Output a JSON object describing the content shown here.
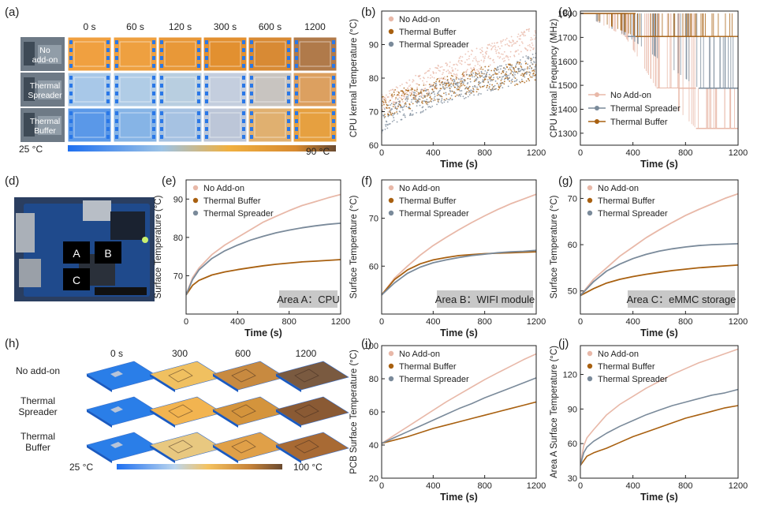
{
  "panel_letters": [
    "(a)",
    "(b)",
    "(c)",
    "(d)",
    "(e)",
    "(f)",
    "(g)",
    "(h)",
    "(i)",
    "(j)"
  ],
  "a": {
    "time_labels": [
      "0 s",
      "60 s",
      "120 s",
      "300 s",
      "600 s",
      "1200"
    ],
    "row_labels": [
      [
        "No",
        "add-on"
      ],
      [
        "Thermal",
        "Spreader"
      ],
      [
        "Thermal",
        "Buffer"
      ]
    ],
    "scale_min": "25 °C",
    "scale_max": "90 °C"
  },
  "d": {
    "areas": [
      "A",
      "B",
      "C"
    ]
  },
  "h": {
    "time_labels": [
      "0 s",
      "300",
      "600",
      "1200"
    ],
    "row_labels": [
      [
        "No add-on"
      ],
      [
        "Thermal",
        "Spreader"
      ],
      [
        "Thermal",
        "Buffer"
      ]
    ],
    "scale_min": "25 °C",
    "scale_max": "100 °C"
  },
  "colors": {
    "no_addon": "#e8b8a8",
    "buffer": "#a86010",
    "spreader": "#7a8a9a"
  },
  "chart_data": [
    {
      "id": "b",
      "type": "scatter",
      "xlabel": "Time (s)",
      "ylabel": "CPU kernal Temperature (°C)",
      "xlim": [
        0,
        1200
      ],
      "ylim": [
        60,
        100
      ],
      "xticks": [
        0,
        400,
        800,
        1200
      ],
      "yticks": [
        60,
        70,
        80,
        90
      ],
      "legend": "top-left",
      "series": [
        {
          "name": "No Add-on",
          "x": [
            0,
            100,
            200,
            300,
            400,
            500,
            600,
            700,
            800,
            900,
            1000,
            1100,
            1200
          ],
          "y": [
            72,
            74,
            76,
            78,
            80,
            81,
            83,
            85,
            86,
            88,
            89,
            91,
            92
          ]
        },
        {
          "name": "Thermal Buffer",
          "x": [
            0,
            100,
            200,
            300,
            400,
            500,
            600,
            700,
            800,
            900,
            1000,
            1100,
            1200
          ],
          "y": [
            71,
            73,
            74,
            75,
            76,
            77,
            78,
            79,
            80,
            80,
            81,
            82,
            83
          ]
        },
        {
          "name": "Thermal Spreader",
          "x": [
            0,
            100,
            200,
            300,
            400,
            500,
            600,
            700,
            800,
            900,
            1000,
            1100,
            1200
          ],
          "y": [
            67,
            70,
            72,
            73,
            75,
            76,
            77,
            78,
            79,
            80,
            81,
            83,
            84
          ]
        }
      ]
    },
    {
      "id": "c",
      "type": "line",
      "xlabel": "Time (s)",
      "ylabel": "CPU kernal Frequency (MHz)",
      "xlim": [
        0,
        1200
      ],
      "ylim": [
        1250,
        1810
      ],
      "xticks": [
        0,
        400,
        800,
        1200
      ],
      "yticks": [
        1300,
        1400,
        1500,
        1600,
        1700,
        1800
      ],
      "legend": "bottom-left",
      "series": [
        {
          "name": "No Add-on",
          "levels": [
            1800,
            1704,
            1488,
            1320
          ],
          "x": [
            0,
            340,
            580,
            880,
            1200
          ],
          "y": [
            1800,
            1704,
            1488,
            1320,
            1320
          ]
        },
        {
          "name": "Thermal Spreader",
          "levels": [
            1800,
            1704,
            1488
          ],
          "x": [
            0,
            360,
            900,
            1200
          ],
          "y": [
            1800,
            1704,
            1488,
            1488
          ]
        },
        {
          "name": "Thermal Buffer",
          "levels": [
            1800,
            1704
          ],
          "x": [
            0,
            420,
            1200
          ],
          "y": [
            1800,
            1704,
            1704
          ]
        }
      ]
    },
    {
      "id": "e",
      "type": "line",
      "xlabel": "Time (s)",
      "ylabel": "Surface Temperature (°C)",
      "xlim": [
        0,
        1200
      ],
      "ylim": [
        60,
        95
      ],
      "xticks": [
        0,
        400,
        800,
        1200
      ],
      "yticks": [
        70,
        80,
        90
      ],
      "legend": "top-left",
      "annotation": "Area A：CPU",
      "series": [
        {
          "name": "No Add-on",
          "x": [
            0,
            50,
            100,
            200,
            300,
            400,
            500,
            600,
            700,
            800,
            900,
            1000,
            1100,
            1200
          ],
          "y": [
            65,
            69.5,
            72,
            75.5,
            78,
            80,
            82,
            84,
            85.5,
            87,
            88.3,
            89.3,
            90.3,
            91.2
          ]
        },
        {
          "name": "Thermal Buffer",
          "x": [
            0,
            50,
            100,
            200,
            300,
            400,
            500,
            600,
            700,
            800,
            900,
            1000,
            1100,
            1200
          ],
          "y": [
            65,
            67.5,
            68.8,
            70.2,
            71,
            71.6,
            72.1,
            72.6,
            73,
            73.3,
            73.6,
            73.8,
            74,
            74.2
          ]
        },
        {
          "name": "Thermal Spreader",
          "x": [
            0,
            50,
            100,
            200,
            300,
            400,
            500,
            600,
            700,
            800,
            900,
            1000,
            1100,
            1200
          ],
          "y": [
            65,
            69,
            71.5,
            74.5,
            76.5,
            78,
            79.3,
            80.3,
            81.2,
            81.9,
            82.5,
            83,
            83.4,
            83.7
          ]
        }
      ]
    },
    {
      "id": "f",
      "type": "line",
      "xlabel": "Time (s)",
      "ylabel": "Surface Temperature (°C)",
      "xlim": [
        0,
        1200
      ],
      "ylim": [
        50,
        78
      ],
      "xticks": [
        0,
        400,
        800,
        1200
      ],
      "yticks": [
        60,
        70
      ],
      "legend": "top-left",
      "annotation": "Area B：WIFI module",
      "series": [
        {
          "name": "No Add-on",
          "x": [
            0,
            100,
            200,
            300,
            400,
            500,
            600,
            700,
            800,
            900,
            1000,
            1100,
            1200
          ],
          "y": [
            54,
            57.5,
            60,
            62.3,
            64.3,
            66,
            67.6,
            69.1,
            70.5,
            71.8,
            73,
            74,
            75
          ]
        },
        {
          "name": "Thermal Buffer",
          "x": [
            0,
            100,
            200,
            300,
            400,
            500,
            600,
            700,
            800,
            900,
            1000,
            1100,
            1200
          ],
          "y": [
            54,
            57.2,
            59.2,
            60.5,
            61.3,
            61.8,
            62.2,
            62.4,
            62.6,
            62.7,
            62.8,
            62.9,
            63
          ]
        },
        {
          "name": "Thermal Spreader",
          "x": [
            0,
            100,
            200,
            300,
            400,
            500,
            600,
            700,
            800,
            900,
            1000,
            1100,
            1200
          ],
          "y": [
            54,
            56.5,
            58.5,
            59.8,
            60.7,
            61.3,
            61.8,
            62.2,
            62.5,
            62.8,
            63,
            63.1,
            63.3
          ]
        }
      ]
    },
    {
      "id": "g",
      "type": "line",
      "xlabel": "Time (s)",
      "ylabel": "Surface Temperature (°C)",
      "xlim": [
        0,
        1200
      ],
      "ylim": [
        45,
        74
      ],
      "xticks": [
        0,
        400,
        800,
        1200
      ],
      "yticks": [
        50,
        60,
        70
      ],
      "legend": "top-left",
      "annotation": "Area C：eMMC storage",
      "series": [
        {
          "name": "No Add-on",
          "x": [
            0,
            100,
            200,
            300,
            400,
            500,
            600,
            700,
            800,
            900,
            1000,
            1100,
            1200
          ],
          "y": [
            49,
            52.5,
            55,
            57.5,
            59.5,
            61.5,
            63.2,
            64.8,
            66.3,
            67.6,
            68.8,
            70,
            71
          ]
        },
        {
          "name": "Thermal Buffer",
          "x": [
            0,
            100,
            200,
            300,
            400,
            500,
            600,
            700,
            800,
            900,
            1000,
            1100,
            1200
          ],
          "y": [
            49,
            50.5,
            51.7,
            52.5,
            53.1,
            53.6,
            54,
            54.4,
            54.7,
            55,
            55.2,
            55.4,
            55.6
          ]
        },
        {
          "name": "Thermal Spreader",
          "x": [
            0,
            100,
            200,
            300,
            400,
            500,
            600,
            700,
            800,
            900,
            1000,
            1100,
            1200
          ],
          "y": [
            49,
            52,
            54.3,
            55.8,
            57,
            57.9,
            58.6,
            59.1,
            59.5,
            59.8,
            60,
            60.1,
            60.2
          ]
        }
      ]
    },
    {
      "id": "i",
      "type": "line",
      "xlabel": "Time (s)",
      "ylabel": "PCB Surface Temperature (°C)",
      "xlim": [
        0,
        1200
      ],
      "ylim": [
        20,
        100
      ],
      "xticks": [
        0,
        400,
        800,
        1200
      ],
      "yticks": [
        20,
        40,
        60,
        80,
        100
      ],
      "legend": "top-left",
      "series": [
        {
          "name": "No Add-on",
          "x": [
            0,
            100,
            200,
            300,
            400,
            500,
            600,
            700,
            800,
            900,
            1000,
            1100,
            1200
          ],
          "y": [
            41,
            46,
            51,
            56,
            61,
            66,
            70.5,
            75,
            79.5,
            83.5,
            87.5,
            91.5,
            95
          ]
        },
        {
          "name": "Thermal Buffer",
          "x": [
            0,
            100,
            200,
            300,
            400,
            500,
            600,
            700,
            800,
            900,
            1000,
            1100,
            1200
          ],
          "y": [
            41,
            43,
            45,
            47.5,
            50,
            52,
            54,
            56,
            58,
            60,
            62,
            64,
            66
          ]
        },
        {
          "name": "Thermal Spreader",
          "x": [
            0,
            100,
            200,
            300,
            400,
            500,
            600,
            700,
            800,
            900,
            1000,
            1100,
            1200
          ],
          "y": [
            41,
            44.5,
            48,
            51.5,
            55,
            58.5,
            62,
            65,
            68.5,
            71.5,
            74.5,
            77.5,
            80.5
          ]
        }
      ]
    },
    {
      "id": "j",
      "type": "line",
      "xlabel": "Time (s)",
      "ylabel": "Area A Surface Temperature (°C)",
      "xlim": [
        0,
        1200
      ],
      "ylim": [
        30,
        145
      ],
      "xticks": [
        0,
        400,
        800,
        1200
      ],
      "yticks": [
        30,
        60,
        90,
        120
      ],
      "legend": "top-left",
      "series": [
        {
          "name": "No Add-on",
          "x": [
            0,
            25,
            50,
            100,
            200,
            300,
            400,
            500,
            600,
            700,
            800,
            900,
            1000,
            1100,
            1200
          ],
          "y": [
            41,
            58,
            65,
            72,
            85,
            94,
            101,
            108,
            114,
            120,
            125,
            130,
            134,
            138,
            142
          ]
        },
        {
          "name": "Thermal Buffer",
          "x": [
            0,
            50,
            100,
            150,
            200,
            300,
            400,
            500,
            600,
            700,
            800,
            900,
            1000,
            1100,
            1200
          ],
          "y": [
            41,
            49,
            52,
            54,
            56,
            61,
            66,
            70,
            74,
            78,
            82,
            85,
            88,
            91,
            93
          ]
        },
        {
          "name": "Thermal Spreader",
          "x": [
            0,
            25,
            50,
            100,
            200,
            300,
            400,
            500,
            600,
            700,
            800,
            900,
            1000,
            1100,
            1200
          ],
          "y": [
            41,
            52,
            57,
            62,
            69,
            75,
            80,
            85,
            89,
            93,
            96,
            99,
            102,
            104,
            107
          ]
        }
      ]
    }
  ]
}
